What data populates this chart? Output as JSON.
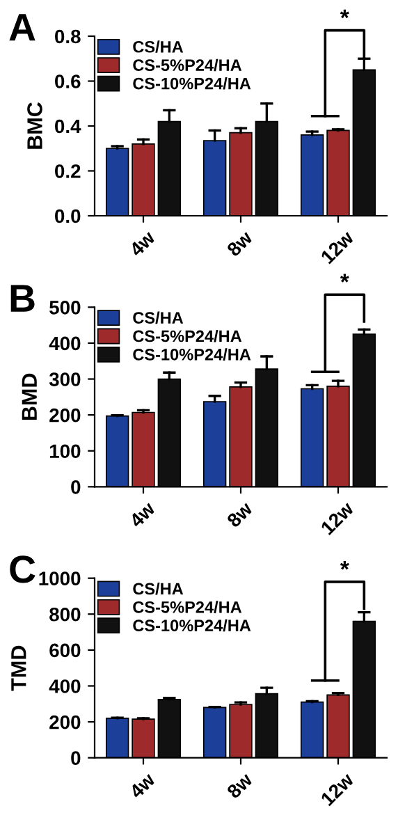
{
  "chart_data": [
    {
      "type": "bar",
      "title": "A",
      "ylabel": "BMC",
      "categories": [
        "4w",
        "8w",
        "12w"
      ],
      "series": [
        {
          "name": "CS/HA",
          "color": "#1c3f9a",
          "values": [
            0.3,
            0.335,
            0.36
          ],
          "errors": [
            [
              0.3,
              0.31
            ],
            [
              0.335,
              0.38
            ],
            [
              0.36,
              0.375
            ]
          ]
        },
        {
          "name": "CS-5%P24/HA",
          "color": "#9e2a2b",
          "values": [
            0.32,
            0.37,
            0.38
          ],
          "errors": [
            [
              0.32,
              0.34
            ],
            [
              0.37,
              0.39
            ],
            [
              0.38,
              0.385
            ]
          ]
        },
        {
          "name": "CS-10%P24/HA",
          "color": "#111111",
          "values": [
            0.42,
            0.42,
            0.65
          ],
          "errors": [
            [
              0.42,
              0.47
            ],
            [
              0.42,
              0.5
            ],
            [
              0.65,
              0.7
            ]
          ]
        }
      ],
      "ylim": [
        0,
        0.8
      ],
      "yticks": [
        {
          "value": 0,
          "label": "0.0"
        },
        0.2,
        0.4,
        0.6,
        0.8
      ],
      "legend": "top left",
      "grid": false,
      "annotations": [
        "*"
      ]
    },
    {
      "type": "bar",
      "title": "B",
      "ylabel": "BMD",
      "categories": [
        "4w",
        "8w",
        "12w"
      ],
      "series": [
        {
          "name": "CS/HA",
          "color": "#1c3f9a",
          "values": [
            197,
            237,
            273
          ],
          "errors": [
            [
              197,
              199
            ],
            [
              237,
              253
            ],
            [
              273,
              283
            ]
          ]
        },
        {
          "name": "CS-5%P24/HA",
          "color": "#9e2a2b",
          "values": [
            207,
            278,
            280
          ],
          "errors": [
            [
              207,
              213
            ],
            [
              278,
              290
            ],
            [
              280,
              295
            ]
          ]
        },
        {
          "name": "CS-10%P24/HA",
          "color": "#111111",
          "values": [
            300,
            328,
            425
          ],
          "errors": [
            [
              300,
              318
            ],
            [
              328,
              363
            ],
            [
              425,
              438
            ]
          ]
        }
      ],
      "ylim": [
        0,
        500
      ],
      "yticks": [
        0,
        100,
        200,
        300,
        400,
        500
      ],
      "legend": "top left",
      "grid": false,
      "annotations": [
        "*"
      ]
    },
    {
      "type": "bar",
      "title": "C",
      "ylabel": "TMD",
      "categories": [
        "4w",
        "8w",
        "12w"
      ],
      "series": [
        {
          "name": "CS/HA",
          "color": "#1c3f9a",
          "values": [
            220,
            280,
            310
          ],
          "errors": [
            [
              220,
              223
            ],
            [
              280,
              283
            ],
            [
              310,
              315
            ]
          ]
        },
        {
          "name": "CS-5%P24/HA",
          "color": "#9e2a2b",
          "values": [
            215,
            297,
            350
          ],
          "errors": [
            [
              215,
              220
            ],
            [
              297,
              308
            ],
            [
              350,
              360
            ]
          ]
        },
        {
          "name": "CS-10%P24/HA",
          "color": "#111111",
          "values": [
            325,
            357,
            760
          ],
          "errors": [
            [
              325,
              333
            ],
            [
              357,
              390
            ],
            [
              760,
              810
            ]
          ]
        }
      ],
      "ylim": [
        0,
        1000
      ],
      "yticks": [
        0,
        200,
        400,
        600,
        800,
        1000
      ],
      "legend": "top left",
      "grid": false,
      "annotations": [
        "*"
      ]
    }
  ]
}
